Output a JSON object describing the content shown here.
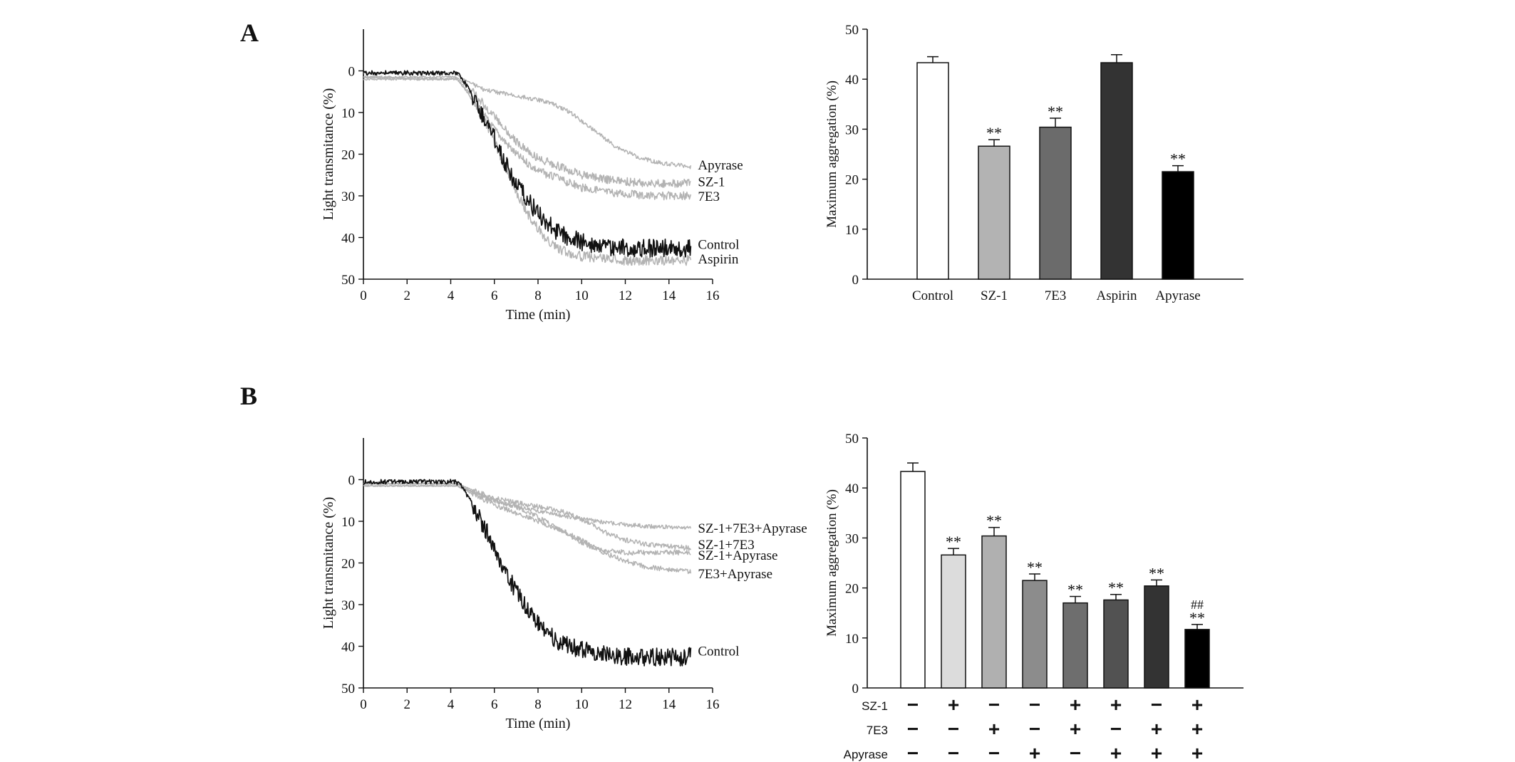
{
  "panels": {
    "a_label": "A",
    "b_label": "B"
  },
  "colors": {
    "black": "#111111",
    "gray": "#b3b3b3",
    "bar_fills_a": [
      "#ffffff",
      "#b3b3b3",
      "#6b6b6b",
      "#333333",
      "#000000"
    ],
    "bar_fills_b": [
      "#ffffff",
      "#dcdcdc",
      "#b0b0b0",
      "#8c8c8c",
      "#6e6e6e",
      "#525252",
      "#333333",
      "#000000"
    ]
  },
  "chart_data": [
    {
      "type": "line",
      "panel": "A",
      "xlabel": "Time (min)",
      "ylabel": "Light transmitance (%)",
      "xlim": [
        0,
        16
      ],
      "ylim": [
        -10,
        50
      ],
      "y_inverted": true,
      "xticks": [
        0,
        2,
        4,
        6,
        8,
        10,
        12,
        14,
        16
      ],
      "yticks": [
        0,
        10,
        20,
        30,
        40,
        50
      ],
      "series": [
        {
          "name": "Apyrase",
          "color": "gray",
          "noise": 0.5,
          "x": [
            0,
            4.2,
            4.6,
            5.5,
            7,
            8.5,
            9.5,
            10.5,
            11.5,
            12.5,
            13.5,
            15
          ],
          "y": [
            0.5,
            0.5,
            2,
            4.5,
            6,
            7.5,
            10,
            14,
            18,
            20.5,
            22,
            23
          ]
        },
        {
          "name": "SZ-1",
          "color": "gray",
          "noise": 1.0,
          "x": [
            0,
            4.3,
            5,
            6,
            7,
            8,
            9,
            10,
            11,
            12,
            13,
            15
          ],
          "y": [
            1.5,
            1.5,
            5,
            11,
            17,
            21,
            23,
            25,
            26,
            26.5,
            27,
            27
          ]
        },
        {
          "name": "7E3",
          "color": "gray",
          "noise": 1.0,
          "x": [
            0,
            4.3,
            5,
            6,
            7,
            8,
            9,
            10,
            11,
            12,
            13,
            15
          ],
          "y": [
            2,
            2,
            7,
            14,
            20,
            24,
            26,
            28,
            29,
            29.5,
            30,
            30
          ]
        },
        {
          "name": "Control",
          "color": "black",
          "noise": 2.2,
          "x": [
            0,
            4.2,
            4.5,
            5,
            5.5,
            6,
            6.5,
            7,
            7.5,
            8,
            8.5,
            9,
            10,
            11,
            12,
            13,
            15
          ],
          "y": [
            0.5,
            0.5,
            1.5,
            6,
            11,
            16,
            22,
            27,
            31,
            34,
            37,
            39,
            41,
            42,
            42.5,
            42.5,
            42.5
          ]
        },
        {
          "name": "Aspirin",
          "color": "gray",
          "noise": 1.2,
          "x": [
            0,
            4.3,
            5,
            5.5,
            6,
            6.5,
            7,
            7.5,
            8,
            8.5,
            9,
            10,
            11,
            12,
            15
          ],
          "y": [
            1.5,
            2,
            6,
            11,
            17,
            23,
            29,
            34,
            38,
            41,
            43,
            44.5,
            45,
            45.5,
            45.5
          ]
        }
      ]
    },
    {
      "type": "bar",
      "panel": "A",
      "ylabel": "Maximum aggregation (%)",
      "ylim": [
        0,
        50
      ],
      "yticks": [
        0,
        10,
        20,
        30,
        40,
        50
      ],
      "categories": [
        "Control",
        "SZ-1",
        "7E3",
        "Aspirin",
        "Apyrase"
      ],
      "values": [
        43.3,
        26.6,
        30.4,
        43.3,
        21.5
      ],
      "errors": [
        1.2,
        1.3,
        1.8,
        1.6,
        1.2
      ],
      "annotations": [
        "",
        "**",
        "**",
        "",
        "**"
      ]
    },
    {
      "type": "line",
      "panel": "B",
      "xlabel": "Time (min)",
      "ylabel": "Light transmitance (%)",
      "xlim": [
        0,
        16
      ],
      "ylim": [
        -10,
        50
      ],
      "y_inverted": true,
      "xticks": [
        0,
        2,
        4,
        6,
        8,
        10,
        12,
        14,
        16
      ],
      "yticks": [
        0,
        10,
        20,
        30,
        40,
        50
      ],
      "series": [
        {
          "name": "SZ-1+7E3+Apyrase",
          "color": "gray",
          "noise": 0.5,
          "x": [
            0,
            4.3,
            5,
            6,
            7,
            8,
            9,
            10,
            11,
            12,
            13,
            15
          ],
          "y": [
            1.5,
            1.5,
            3,
            5,
            6.5,
            7.5,
            8.5,
            9.5,
            10.2,
            10.8,
            11.2,
            11.5
          ]
        },
        {
          "name": "SZ-1+7E3",
          "color": "gray",
          "noise": 0.6,
          "x": [
            0,
            4.3,
            5,
            6,
            7,
            8,
            9,
            10,
            11,
            12,
            13,
            15
          ],
          "y": [
            1,
            1,
            2.5,
            4.5,
            5.5,
            6.5,
            7.5,
            9.5,
            12.5,
            14.5,
            15.5,
            16.5
          ]
        },
        {
          "name": "SZ-1+Apyrase",
          "color": "gray",
          "noise": 0.6,
          "x": [
            0,
            4.3,
            5,
            6,
            7,
            8,
            9,
            10,
            10.5,
            11,
            12,
            13,
            15
          ],
          "y": [
            1.5,
            1.5,
            3.5,
            6,
            8,
            10,
            12,
            14.5,
            16,
            17,
            17.5,
            17.5,
            17.5
          ]
        },
        {
          "name": "7E3+Apyrase",
          "color": "gray",
          "noise": 0.6,
          "x": [
            0,
            4.3,
            5,
            6,
            7,
            8,
            9,
            10,
            11,
            12,
            13,
            15
          ],
          "y": [
            1,
            1,
            3,
            5,
            6.5,
            9,
            12,
            15,
            17.5,
            19.5,
            21,
            22
          ]
        },
        {
          "name": "Control",
          "color": "black",
          "noise": 2.2,
          "x": [
            0,
            4.2,
            4.5,
            5,
            5.5,
            6,
            6.5,
            7,
            7.5,
            8,
            8.5,
            9,
            10,
            11,
            12,
            13,
            15
          ],
          "y": [
            0.5,
            0.5,
            1.5,
            6,
            11,
            16,
            22,
            27,
            31,
            34,
            37,
            39,
            41,
            42,
            42.5,
            42.5,
            42.5
          ]
        }
      ]
    },
    {
      "type": "bar",
      "panel": "B",
      "ylabel": "Maximum aggregation (%)",
      "ylim": [
        0,
        50
      ],
      "yticks": [
        0,
        10,
        20,
        30,
        40,
        50
      ],
      "values": [
        43.3,
        26.6,
        30.4,
        21.5,
        17.0,
        17.6,
        20.4,
        11.7
      ],
      "errors": [
        1.7,
        1.3,
        1.7,
        1.3,
        1.3,
        1.1,
        1.2,
        1.0
      ],
      "annotations": [
        "",
        "**",
        "**",
        "**",
        "**",
        "**",
        "**",
        "**"
      ],
      "annotations2": [
        "",
        "",
        "",
        "",
        "",
        "",
        "",
        "##"
      ],
      "conditions": [
        {
          "label": "SZ-1",
          "signs": [
            "−",
            "+",
            "−",
            "−",
            "+",
            "+",
            "−",
            "+"
          ]
        },
        {
          "label": "7E3",
          "signs": [
            "−",
            "−",
            "+",
            "−",
            "+",
            "−",
            "+",
            "+"
          ]
        },
        {
          "label": "Apyrase",
          "signs": [
            "−",
            "−",
            "−",
            "+",
            "−",
            "+",
            "+",
            "+"
          ]
        }
      ]
    }
  ]
}
